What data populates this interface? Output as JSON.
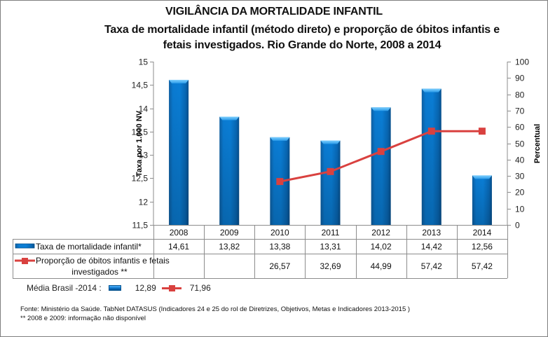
{
  "chart_data": {
    "type": "bar+line",
    "title": "VIGILÂNCIA DA MORTALIDADE INFANTIL",
    "subtitle_line1": "Taxa de mortalidade infantil (método direto) e proporção de óbitos infantis e",
    "subtitle_line2": "fetais investigados. Rio Grande do Norte, 2008 a 2014",
    "categories": [
      "2008",
      "2009",
      "2010",
      "2011",
      "2012",
      "2013",
      "2014"
    ],
    "series": [
      {
        "name": "Taxa de mortalidade infantil*",
        "type": "bar",
        "axis": "left",
        "color": "#0a74c9",
        "values": [
          14.61,
          13.82,
          13.38,
          13.31,
          14.02,
          14.42,
          12.56
        ],
        "labels": [
          "14,61",
          "13,82",
          "13,38",
          "13,31",
          "14,02",
          "14,42",
          "12,56"
        ]
      },
      {
        "name": "Proporção de óbitos infantis e fetais investigados **",
        "name_line1": "Proporção de óbitos infantis e fetais",
        "name_line2": "investigados **",
        "type": "line",
        "axis": "right",
        "color": "#d9413f",
        "values": [
          null,
          null,
          26.57,
          32.69,
          44.99,
          57.42,
          57.42
        ],
        "labels": [
          "",
          "",
          "26,57",
          "32,69",
          "44,99",
          "57,42",
          "57,42"
        ]
      }
    ],
    "y_left": {
      "label": "Taxa  por 1.000 NV",
      "range": [
        11.5,
        15
      ],
      "ticks": [
        11.5,
        12,
        12.5,
        13,
        13.5,
        14,
        14.5,
        15
      ],
      "tick_labels": [
        "11,5",
        "12",
        "12,5",
        "13",
        "13,5",
        "14",
        "14,5",
        "15"
      ]
    },
    "y_right": {
      "label": "Percentual",
      "range": [
        0,
        100
      ],
      "ticks": [
        0,
        10,
        20,
        30,
        40,
        50,
        60,
        70,
        80,
        90,
        100
      ],
      "tick_labels": [
        "0",
        "10",
        "20",
        "30",
        "40",
        "50",
        "60",
        "70",
        "80",
        "90",
        "100"
      ]
    },
    "grid": false,
    "legend": "data-table-below"
  },
  "media_brasil": {
    "label": "Média Brasil -2014 :",
    "bar_value": "12,89",
    "line_value": "71,96"
  },
  "footnotes": {
    "source": "Fonte: Ministério da Saúde. TabNet DATASUS (Indicadores 24 e 25 do rol de Diretrizes, Objetivos, Metas e Indicadores 2013-2015 )",
    "note": "** 2008 e 2009: informação não disponível"
  }
}
